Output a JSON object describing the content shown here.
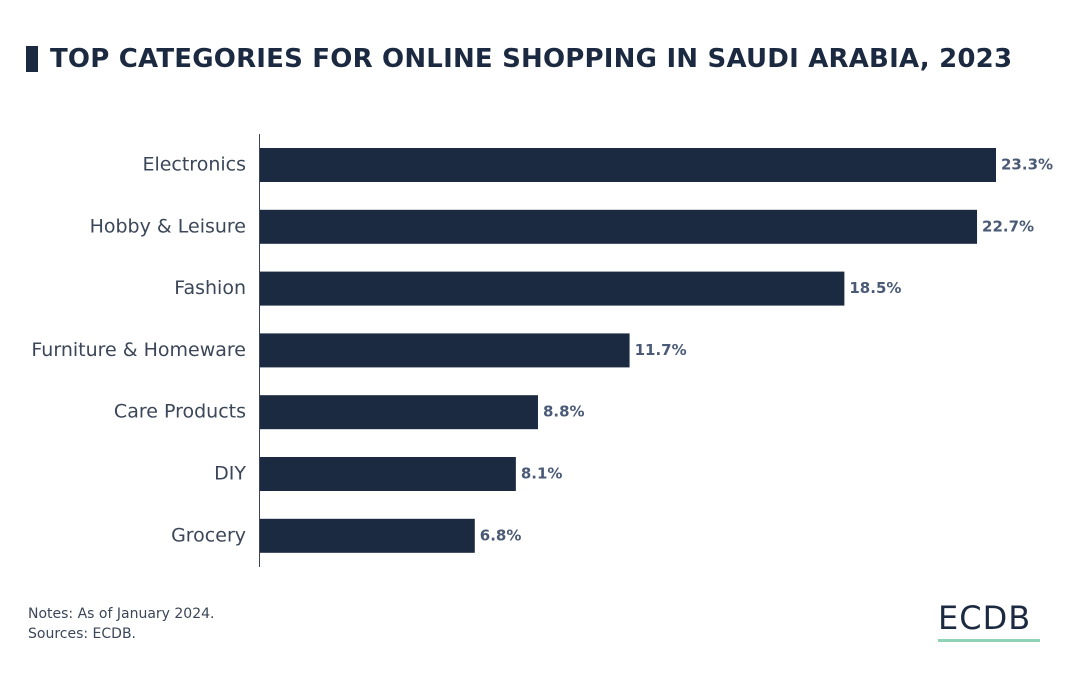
{
  "title": "TOP CATEGORIES FOR ONLINE SHOPPING IN SAUDI ARABIA, 2023",
  "notes": "Notes: As of January 2024.",
  "sources": "Sources: ECDB.",
  "logo": "ECDB",
  "colors": {
    "bar": "#1b2a41",
    "value_label": "#4a5a76",
    "logo_underline": "#8fd3b6"
  },
  "chart_data": {
    "type": "bar",
    "orientation": "horizontal",
    "categories": [
      "Electronics",
      "Hobby & Leisure",
      "Fashion",
      "Furniture & Homeware",
      "Care Products",
      "DIY",
      "Grocery"
    ],
    "values": [
      23.3,
      22.7,
      18.5,
      11.7,
      8.8,
      8.1,
      6.8
    ],
    "value_labels": [
      "23.3%",
      "22.7%",
      "18.5%",
      "11.7%",
      "8.8%",
      "8.1%",
      "6.8%"
    ],
    "xlim": [
      0,
      23.3
    ],
    "grid": false,
    "legend": "none"
  }
}
